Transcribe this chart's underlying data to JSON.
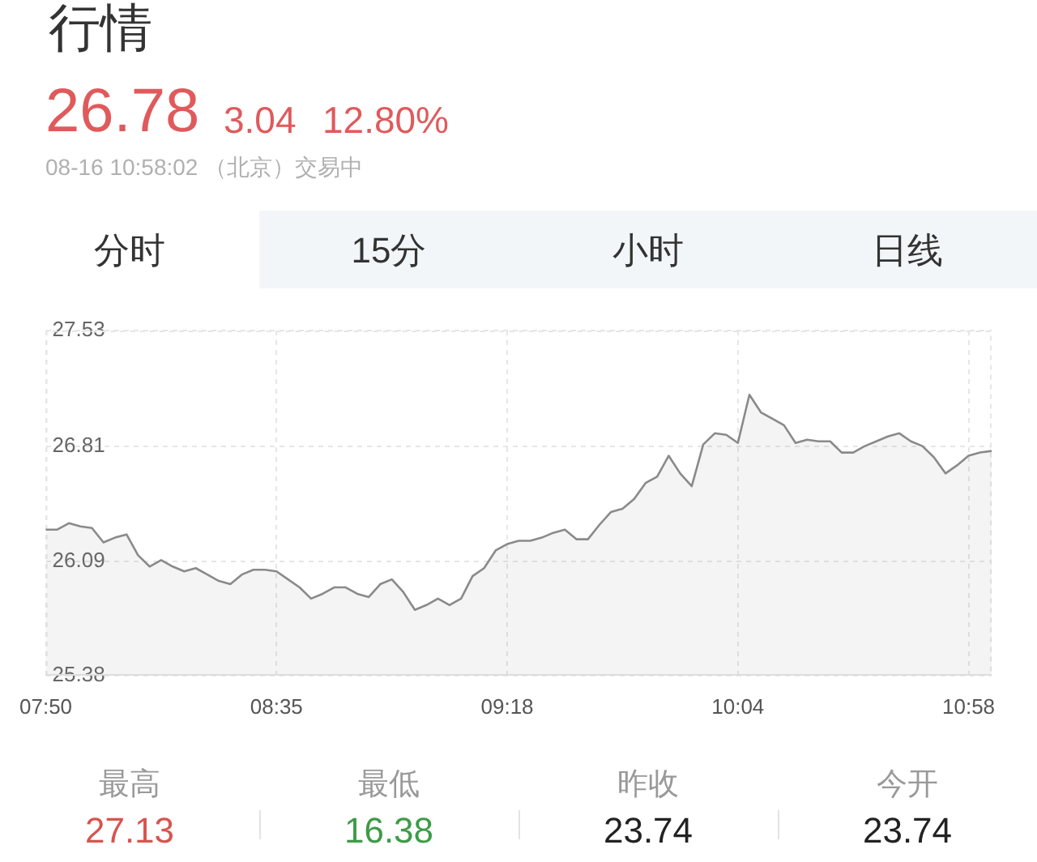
{
  "chart_data": {
    "type": "area",
    "title": "行情",
    "annotations": [
      "26.78",
      "3.04",
      "12.80%",
      "08-16 10:58:02 （北京）交易中",
      "分时",
      "15分",
      "小时",
      "日线",
      "最高",
      "27.13",
      "最低",
      "16.38",
      "昨收",
      "23.74",
      "今开",
      "23.74"
    ],
    "categories": [
      "07:50",
      null,
      null,
      null,
      null,
      null,
      null,
      null,
      null,
      null,
      null,
      null,
      null,
      null,
      null,
      null,
      null,
      null,
      null,
      null,
      "08:35",
      null,
      null,
      null,
      null,
      null,
      null,
      null,
      null,
      null,
      null,
      null,
      null,
      null,
      null,
      null,
      null,
      null,
      null,
      null,
      "09:18",
      null,
      null,
      null,
      null,
      null,
      null,
      null,
      null,
      null,
      null,
      null,
      null,
      null,
      null,
      null,
      null,
      null,
      null,
      null,
      "10:04",
      null,
      null,
      null,
      null,
      null,
      null,
      null,
      null,
      null,
      null,
      null,
      null,
      null,
      null,
      null,
      null,
      null,
      null,
      null,
      "10:58",
      null,
      null
    ],
    "values": [
      26.29,
      26.29,
      26.33,
      26.31,
      26.3,
      26.21,
      26.24,
      26.26,
      26.13,
      26.06,
      26.1,
      26.06,
      26.03,
      26.05,
      26.01,
      25.97,
      25.95,
      26.01,
      26.04,
      26.04,
      26.03,
      25.98,
      25.93,
      25.86,
      25.89,
      25.93,
      25.93,
      25.89,
      25.87,
      25.95,
      25.98,
      25.9,
      25.79,
      25.82,
      25.86,
      25.82,
      25.86,
      26.0,
      26.05,
      26.16,
      26.2,
      26.22,
      26.22,
      26.24,
      26.27,
      26.29,
      26.23,
      26.23,
      26.32,
      26.4,
      26.42,
      26.48,
      26.58,
      26.62,
      26.75,
      26.64,
      26.56,
      26.82,
      26.89,
      26.88,
      26.83,
      27.13,
      27.02,
      26.98,
      26.94,
      26.83,
      26.85,
      26.84,
      26.84,
      26.77,
      26.77,
      26.81,
      26.84,
      26.87,
      26.89,
      26.84,
      26.81,
      26.74,
      26.64,
      26.69,
      26.75,
      26.77,
      26.78
    ],
    "color": "#8a8a8a",
    "ylim": [
      25.38,
      27.53
    ],
    "yticks": [
      25.38,
      26.09,
      26.81,
      27.53
    ],
    "grid": true,
    "marker": "none"
  }
}
